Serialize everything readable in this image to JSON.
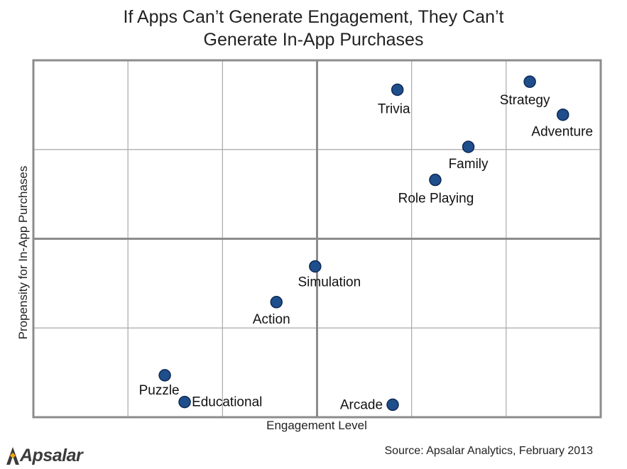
{
  "title_line1": "If Apps Can’t Generate Engagement, They Can’t",
  "title_line2": "Generate In-App Purchases",
  "source": "Source: Apsalar Analytics, February 2013",
  "logo_text": "Apsalar",
  "chart_data": {
    "type": "scatter",
    "xlabel": "Engagement Level",
    "ylabel": "Propensity for In-App Purchases",
    "xlim": [
      0,
      6
    ],
    "ylim": [
      0,
      4
    ],
    "grid": true,
    "points": [
      {
        "label": "Trivia",
        "x": 3.85,
        "y": 3.67
      },
      {
        "label": "Strategy",
        "x": 5.25,
        "y": 3.76
      },
      {
        "label": "Adventure",
        "x": 5.6,
        "y": 3.39
      },
      {
        "label": "Family",
        "x": 4.6,
        "y": 3.03
      },
      {
        "label": "Role Playing",
        "x": 4.25,
        "y": 2.66
      },
      {
        "label": "Simulation",
        "x": 2.98,
        "y": 1.69
      },
      {
        "label": "Action",
        "x": 2.57,
        "y": 1.29
      },
      {
        "label": "Puzzle",
        "x": 1.39,
        "y": 0.47
      },
      {
        "label": "Educational",
        "x": 1.6,
        "y": 0.17
      },
      {
        "label": "Arcade",
        "x": 3.8,
        "y": 0.14
      }
    ],
    "marker_color": "#1f4e8c",
    "marker_edge": "#0d2a55",
    "grid_color": "#a9a9a9",
    "axis_color": "#8c8c8c"
  }
}
